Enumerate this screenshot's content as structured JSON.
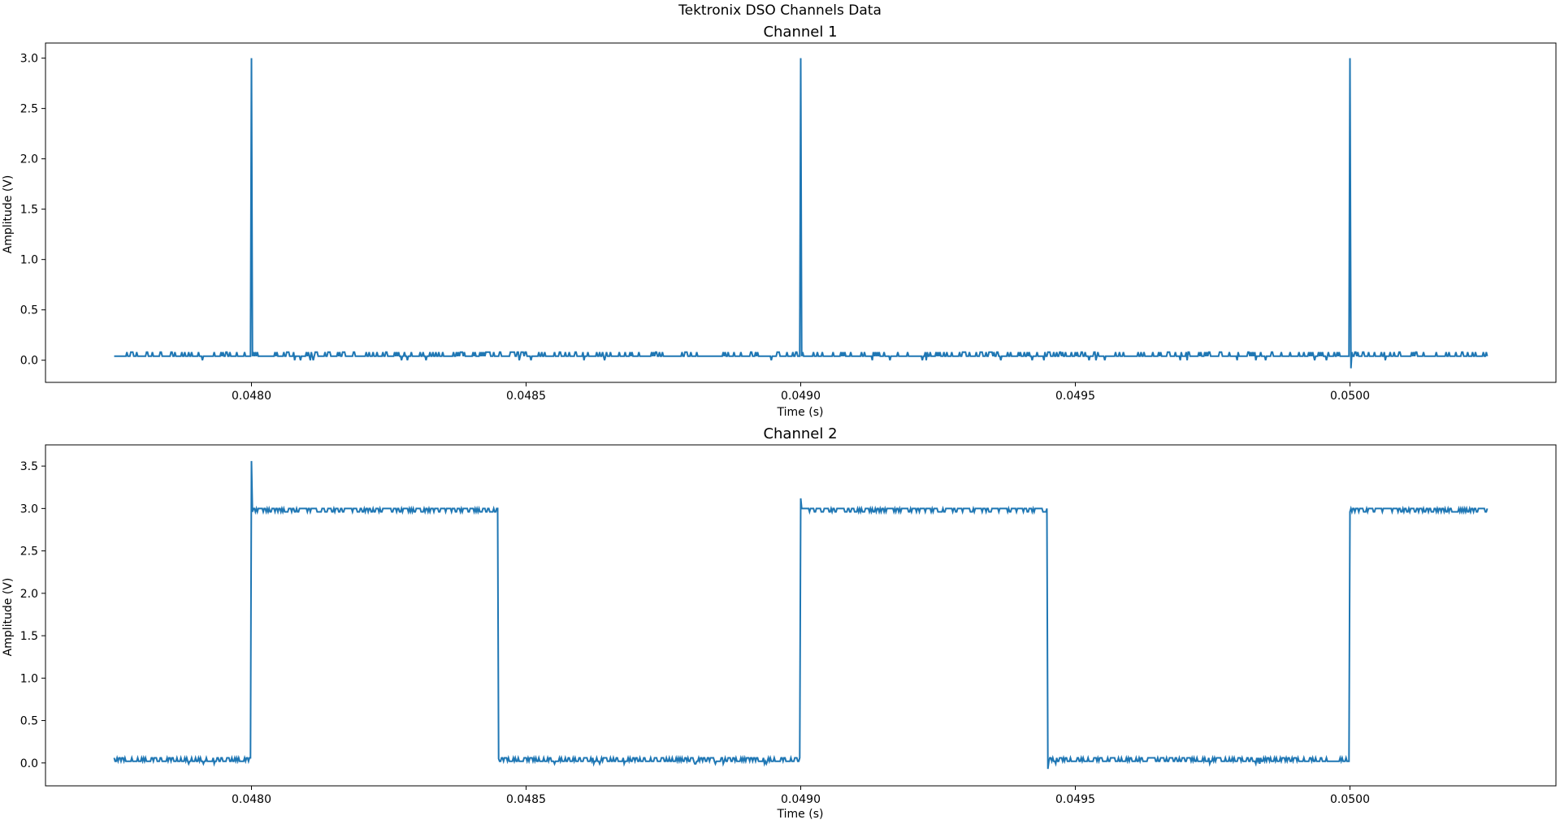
{
  "figure": {
    "suptitle": "Tektronix DSO Channels Data"
  },
  "style": {
    "line_color": "#1f77b4",
    "axis_color": "#000000",
    "background": "#ffffff"
  },
  "chart_data": [
    {
      "type": "line",
      "title": "Channel 1",
      "xlabel": "Time (s)",
      "ylabel": "Amplitude (V)",
      "xlim": [
        0.047625,
        0.050375
      ],
      "ylim": [
        -0.22,
        3.15
      ],
      "x_ticks": [
        "0.0480",
        "0.0485",
        "0.0490",
        "0.0495",
        "0.0500"
      ],
      "x_tick_values": [
        0.048,
        0.0485,
        0.049,
        0.0495,
        0.05
      ],
      "y_ticks": [
        "0.0",
        "0.5",
        "1.0",
        "1.5",
        "2.0",
        "2.5",
        "3.0"
      ],
      "y_tick_values": [
        0,
        0.5,
        1.0,
        1.5,
        2.0,
        2.5,
        3.0
      ],
      "grid": false,
      "series": [
        {
          "data_range": [
            0.04775,
            0.05025
          ],
          "baseline": 0.04,
          "noise_high": 0.08,
          "noise_low": 0.0,
          "pulses": [
            {
              "t": 0.048,
              "peak": 3.0
            },
            {
              "t": 0.049,
              "peak": 3.0
            },
            {
              "t": 0.05,
              "peak": 3.0,
              "undershoot": -0.08
            }
          ]
        }
      ]
    },
    {
      "type": "line",
      "title": "Channel 2",
      "xlabel": "Time (s)",
      "ylabel": "Amplitude (V)",
      "xlim": [
        0.047625,
        0.050375
      ],
      "ylim": [
        -0.27,
        3.75
      ],
      "x_ticks": [
        "0.0480",
        "0.0485",
        "0.0490",
        "0.0495",
        "0.0500"
      ],
      "x_tick_values": [
        0.048,
        0.0485,
        0.049,
        0.0495,
        0.05
      ],
      "y_ticks": [
        "0.0",
        "0.5",
        "1.0",
        "1.5",
        "2.0",
        "2.5",
        "3.0",
        "3.5"
      ],
      "y_tick_values": [
        0,
        0.5,
        1.0,
        1.5,
        2.0,
        2.5,
        3.0,
        3.5
      ],
      "grid": false,
      "series": [
        {
          "data_range": [
            0.04775,
            0.05025
          ],
          "low_level": 0.02,
          "high_level": 3.0,
          "edges": [
            {
              "t": 0.048,
              "to": "high",
              "overshoot": 3.56
            },
            {
              "t": 0.04845,
              "to": "low",
              "overshoot": 0.05
            },
            {
              "t": 0.049,
              "to": "high",
              "overshoot": 3.12
            },
            {
              "t": 0.04945,
              "to": "low",
              "overshoot": -0.07
            },
            {
              "t": 0.05,
              "to": "high"
            }
          ]
        }
      ]
    }
  ]
}
